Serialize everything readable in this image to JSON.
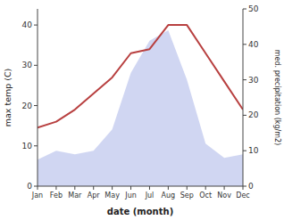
{
  "chart_data": {
    "type": "line",
    "xlabel": "date (month)",
    "ylabel": "max temp (C)",
    "y2label": "med. precipitation (kg/m2)",
    "categories": [
      "Jan",
      "Feb",
      "Mar",
      "Apr",
      "May",
      "Jun",
      "Jul",
      "Aug",
      "Sep",
      "Oct",
      "Nov",
      "Dec"
    ],
    "series": [
      {
        "type": "area",
        "axis": "y2",
        "color": "#aab4e8",
        "values": [
          7.5,
          10,
          9,
          10,
          16,
          32,
          41,
          44,
          30,
          12,
          8,
          9
        ]
      },
      {
        "type": "line",
        "color": "#b84040",
        "values": [
          14.5,
          16,
          19,
          23,
          27,
          33,
          34,
          40,
          40,
          33,
          26,
          19
        ]
      }
    ],
    "ylim": [
      0,
      44
    ],
    "yticks": [
      0,
      10,
      20,
      30,
      40
    ],
    "y2lim": [
      0,
      50
    ],
    "y2ticks": [
      0,
      10,
      20,
      30,
      40,
      50
    ],
    "grid": false
  }
}
